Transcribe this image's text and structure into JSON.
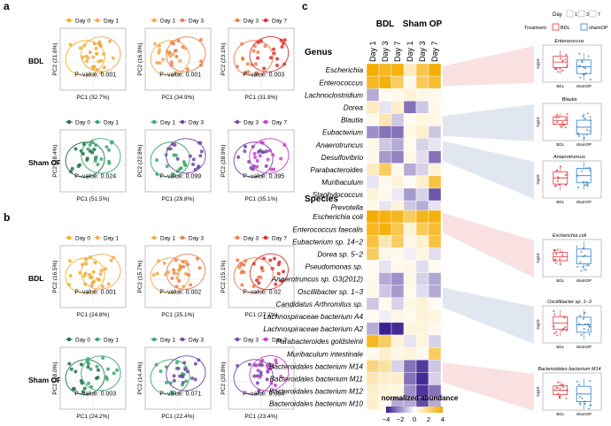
{
  "panels": {
    "a": "a",
    "b": "b",
    "c": "c"
  },
  "chart_data": [
    {
      "type": "scatter",
      "panel": "a",
      "row_labels": [
        "BDL",
        "Sham OP"
      ],
      "rows": [
        {
          "name": "BDL",
          "plots": [
            {
              "legend": [
                "Day 0",
                "Day 1"
              ],
              "colors": [
                "#f2b21b",
                "#f0a94a"
              ],
              "ylabel": "PC2 (21.6%)",
              "xlabel": "PC1 (32.7%)",
              "pvalue": "P−value: 0.001"
            },
            {
              "legend": [
                "Day 1",
                "Day 3"
              ],
              "colors": [
                "#f0a94a",
                "#ee7d4c"
              ],
              "ylabel": "PC2 (16.9%)",
              "xlabel": "PC1 (34.9%)",
              "pvalue": "P−value: 0.001"
            },
            {
              "legend": [
                "Day 3",
                "Day 7"
              ],
              "colors": [
                "#ee7d4c",
                "#e0302d"
              ],
              "ylabel": "PC2 (23.1%)",
              "xlabel": "PC1 (31.9%)",
              "pvalue": "P−value: 0.003"
            }
          ]
        },
        {
          "name": "Sham OP",
          "plots": [
            {
              "legend": [
                "Day 0",
                "Day 1"
              ],
              "colors": [
                "#24704b",
                "#3aa86c"
              ],
              "ylabel": "PC2 (18.4%)",
              "xlabel": "PC1 (51.5%)",
              "pvalue": "P−value: 0.024"
            },
            {
              "legend": [
                "Day 1",
                "Day 3"
              ],
              "colors": [
                "#3aa86c",
                "#7247a8"
              ],
              "ylabel": "PC2 (22.8%)",
              "xlabel": "PC1 (29.8%)",
              "pvalue": "P−value: 0.099"
            },
            {
              "legend": [
                "Day 3",
                "Day 7"
              ],
              "colors": [
                "#7247a8",
                "#c93fc9"
              ],
              "ylabel": "PC2 (28.9%)",
              "xlabel": "PC1 (35.1%)",
              "pvalue": "P−value: 0.395"
            }
          ]
        }
      ]
    },
    {
      "type": "scatter",
      "panel": "b",
      "row_labels": [
        "BDL",
        "Sham OP"
      ],
      "rows": [
        {
          "name": "BDL",
          "plots": [
            {
              "legend": [
                "Day 0",
                "Day 1"
              ],
              "colors": [
                "#f2b21b",
                "#f0a94a"
              ],
              "ylabel": "PC2 (16.5%)",
              "xlabel": "PC1 (24.8%)",
              "pvalue": "P−value: 0.001"
            },
            {
              "legend": [
                "Day 1",
                "Day 3"
              ],
              "colors": [
                "#f0a94a",
                "#ee7d4c"
              ],
              "ylabel": "PC2 (15.7%)",
              "xlabel": "PC1 (25.1%)",
              "pvalue": "P−value: 0.002"
            },
            {
              "legend": [
                "Day 3",
                "Day 7"
              ],
              "colors": [
                "#ee7d4c",
                "#e0302d"
              ],
              "ylabel": "PC2 (15.1%)",
              "xlabel": "PC1 (27.2%)",
              "pvalue": "P−value: 0.02"
            }
          ]
        },
        {
          "name": "Sham OP",
          "plots": [
            {
              "legend": [
                "Day 0",
                "Day 1"
              ],
              "colors": [
                "#24704b",
                "#3aa86c"
              ],
              "ylabel": "PC2 (18.0%)",
              "xlabel": "PC1 (24.2%)",
              "pvalue": "P−value: 0.003"
            },
            {
              "legend": [
                "Day 1",
                "Day 3"
              ],
              "colors": [
                "#3aa86c",
                "#7247a8"
              ],
              "ylabel": "PC2 (14.4%)",
              "xlabel": "PC1 (22.4%)",
              "pvalue": "P−value: 0.071"
            },
            {
              "legend": [
                "Day 3",
                "Day 7"
              ],
              "colors": [
                "#7247a8",
                "#c93fc9"
              ],
              "ylabel": "PC2 (20.8%)",
              "xlabel": "PC1 (23.4%)",
              "pvalue": "P−value: 0.084"
            }
          ]
        }
      ]
    },
    {
      "type": "heatmap",
      "panel": "c",
      "group_labels": [
        "BDL",
        "Sham OP"
      ],
      "columns": [
        "Day 1",
        "Day 3",
        "Day 7",
        "Day 1",
        "Day 3",
        "Day 7"
      ],
      "sections": [
        {
          "name": "Genus",
          "rows": [
            "Escherichia",
            "Enterococcus",
            "Lachnoclostridium",
            "Dorea",
            "Blautia",
            "Eubacterium",
            "Anaerotruncus",
            "Desulfovibrio",
            "Parabacteroides",
            "Muribaculum",
            "Staphylococcus",
            "Prevotella"
          ],
          "values": [
            [
              4,
              3.5,
              3.8,
              1,
              2.8,
              4
            ],
            [
              3.5,
              3.8,
              2.5,
              0.3,
              2.6,
              3.2
            ],
            [
              -1.5,
              0.2,
              0.3,
              0.6,
              0.4,
              0.3
            ],
            [
              1,
              -0.5,
              0.8,
              -2.5,
              -1,
              0.3
            ],
            [
              0.3,
              1.2,
              -1,
              0.2,
              0.5,
              0.4
            ],
            [
              -2,
              -2.5,
              -2.5,
              0.4,
              0.8,
              -1
            ],
            [
              0.4,
              -1,
              -1.5,
              0.3,
              -0.8,
              -0.5
            ],
            [
              0.3,
              -1.8,
              -2.2,
              0.4,
              -0.6,
              -2.5
            ],
            [
              1,
              2.5,
              0.3,
              -1.5,
              -0.8,
              0.6
            ],
            [
              -0.5,
              0.3,
              0.6,
              0.2,
              0.8,
              3
            ],
            [
              0.6,
              0.3,
              -0.4,
              -1.8,
              -0.8,
              -3
            ],
            [
              0.3,
              -0.5,
              0.6,
              -1,
              -1.5,
              -0.5
            ]
          ]
        },
        {
          "name": "Species",
          "rows": [
            "Escherichia coli",
            "Enterococcus faecalis",
            "Eubacterium sp. 14−2",
            "Dorea sp. 5−2",
            "Pseudomonas sp.",
            "Anaerotruncus sp. G3(2012)",
            "Oscillibacter sp. 1−3",
            "Candidatus Arthromitus sp.",
            "Lachnospiraceae bacterium A4",
            "Lachnospiraceae bacterium A2",
            "Parabacteroides goldsteinii",
            "Muribaculum intestinale",
            "Bacteroidales bacterium M14",
            "Bacteroidales bacterium M11",
            "Bacteroidales bacterium M12",
            "Bacteroidales bacterium M10"
          ],
          "values": [
            [
              4,
              3.8,
              3.5,
              2.5,
              3.6,
              3.8
            ],
            [
              3.5,
              3.8,
              2.8,
              0.6,
              2.6,
              3.2
            ],
            [
              3,
              1.2,
              2.5,
              0.4,
              0.7,
              3
            ],
            [
              2.5,
              0.4,
              0.3,
              -0.3,
              0.5,
              -0.6
            ],
            [
              0.2,
              -0.5,
              0.3,
              0.4,
              -0.6,
              0.2
            ],
            [
              0.3,
              -1.5,
              -2,
              0.4,
              -0.8,
              -1.6
            ],
            [
              0.4,
              -1,
              -1.8,
              0.3,
              -0.6,
              -1.5
            ],
            [
              -1,
              0.3,
              -0.8,
              0.4,
              0.6,
              0.2
            ],
            [
              0.2,
              -0.3,
              0.4,
              0.3,
              0.6,
              0.5
            ],
            [
              -1.5,
              -4,
              -3.8,
              0.5,
              0.6,
              0.3
            ],
            [
              3.5,
              2.5,
              0.6,
              -0.5,
              0.5,
              -0.8
            ],
            [
              0.3,
              0.8,
              0.4,
              0.6,
              0.3,
              2.5
            ],
            [
              2,
              1.5,
              -0.8,
              -2.5,
              -3.5,
              -1
            ],
            [
              1.2,
              0.8,
              0.8,
              -2.5,
              -3.8,
              -0.8
            ],
            [
              0.8,
              0.6,
              0.5,
              -2,
              -3.6,
              -2.5
            ],
            [
              0.8,
              0.3,
              -1.5,
              -1.5,
              -3.2,
              -1.5
            ]
          ]
        }
      ],
      "legend_title": "normalized abundance",
      "legend_ticks": [
        "−4",
        "−2",
        "0",
        "2",
        "4"
      ],
      "scale": {
        "min": -4,
        "max": 4,
        "colors": [
          "#3b1e8f",
          "#ffffff",
          "#f5ad00"
        ]
      },
      "box_legend": {
        "title": "Day",
        "day_items": [
          "1",
          "3",
          "7"
        ],
        "treatment_title": "Treatment",
        "treatments": [
          "BDL",
          "shamOP"
        ],
        "treatment_colors": [
          "#e0303a",
          "#2f7dc4"
        ]
      },
      "boxplots": [
        {
          "title": "Enterococcus",
          "ylabel": "log10",
          "x": [
            "BDL",
            "shamOP"
          ]
        },
        {
          "title": "Blautia",
          "ylabel": "log10",
          "x": [
            "BDL",
            "shamOP"
          ]
        },
        {
          "title": "Anaerotruncus",
          "ylabel": "log10",
          "x": [
            "BDL",
            "shamOP"
          ]
        },
        {
          "title": "Escherichia coli",
          "ylabel": "log10",
          "x": [
            "BDL",
            "shamOP"
          ]
        },
        {
          "title": "Oscillibacter sp. 1−3",
          "ylabel": "log10",
          "x": [
            "BDL",
            "shamOP"
          ]
        },
        {
          "title": "Bacteroidales bacterium M14",
          "ylabel": "log10",
          "x": [
            "BDL",
            "shamOP"
          ]
        }
      ]
    }
  ]
}
